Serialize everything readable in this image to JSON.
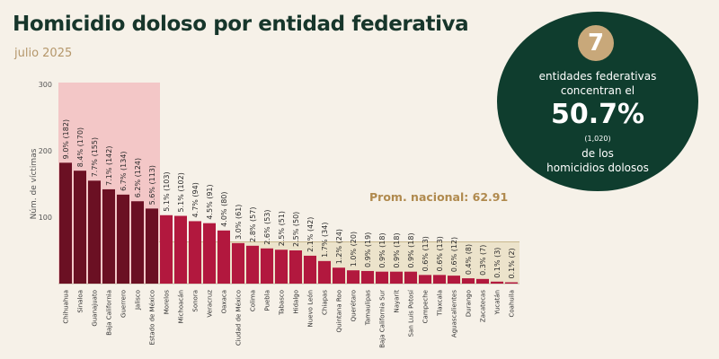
{
  "header": {
    "title": "Homicidio doloso por entidad federativa",
    "subtitle": "julio 2025"
  },
  "callout": {
    "number": "7",
    "line1": "entidades federativas",
    "line2": "concentran el",
    "percent": "50.7%",
    "total": "(1,020)",
    "line3": "de los",
    "line4": "homicidios dolosos"
  },
  "colors": {
    "top7_bar": "#6b1023",
    "other_bar": "#b2183e",
    "highlight_band": "#f3c7c7",
    "national_avg_band": "#ece3cb",
    "title": "#17362b",
    "accent": "#b5976b",
    "callout_bg": "#0f3d2e"
  },
  "chart_data": {
    "type": "bar",
    "ylabel": "Núm. de víctimas",
    "ylim": [
      0,
      300
    ],
    "yticks": [
      100,
      200,
      300
    ],
    "national_average": 62.91,
    "national_average_label": "Prom. nacional: 62.91",
    "highlighted_count": 7,
    "categories": [
      "Chihuahua",
      "Sinaloa",
      "Guanajuato",
      "Baja California",
      "Guerrero",
      "Jalisco",
      "Estado de México",
      "Morelos",
      "Michoacán",
      "Sonora",
      "Veracruz",
      "Oaxaca",
      "Ciudad de México",
      "Colima",
      "Puebla",
      "Tabasco",
      "Hidalgo",
      "Nuevo León",
      "Chiapas",
      "Quintana Roo",
      "Querétaro",
      "Tamaulipas",
      "Baja California Sur",
      "Nayarit",
      "San Luis Potosí",
      "Campeche",
      "Tlaxcala",
      "Aguascalientes",
      "Durango",
      "Zacatecas",
      "Yucatán",
      "Coahuila"
    ],
    "values": [
      182,
      170,
      155,
      142,
      134,
      124,
      113,
      103,
      102,
      94,
      91,
      80,
      61,
      57,
      53,
      51,
      50,
      42,
      34,
      24,
      20,
      19,
      18,
      18,
      18,
      13,
      13,
      12,
      8,
      7,
      3,
      2
    ],
    "labels": [
      "9.0% (182)",
      "8.4% (170)",
      "7.7% (155)",
      "7.1% (142)",
      "6.7% (134)",
      "6.2% (124)",
      "5.6% (113)",
      "5.1% (103)",
      "5.1% (102)",
      "4.7% (94)",
      "4.5% (91)",
      "4.0% (80)",
      "3.0% (61)",
      "2.8% (57)",
      "2.6% (53)",
      "2.5% (51)",
      "2.5% (50)",
      "2.1% (42)",
      "1.7% (34)",
      "1.2% (24)",
      "1.0% (20)",
      "0.9% (19)",
      "0.9% (18)",
      "0.9% (18)",
      "0.9% (18)",
      "0.6% (13)",
      "0.6% (13)",
      "0.6% (12)",
      "0.4% (8)",
      "0.3% (7)",
      "0.1% (3)",
      "0.1% (2)"
    ]
  }
}
